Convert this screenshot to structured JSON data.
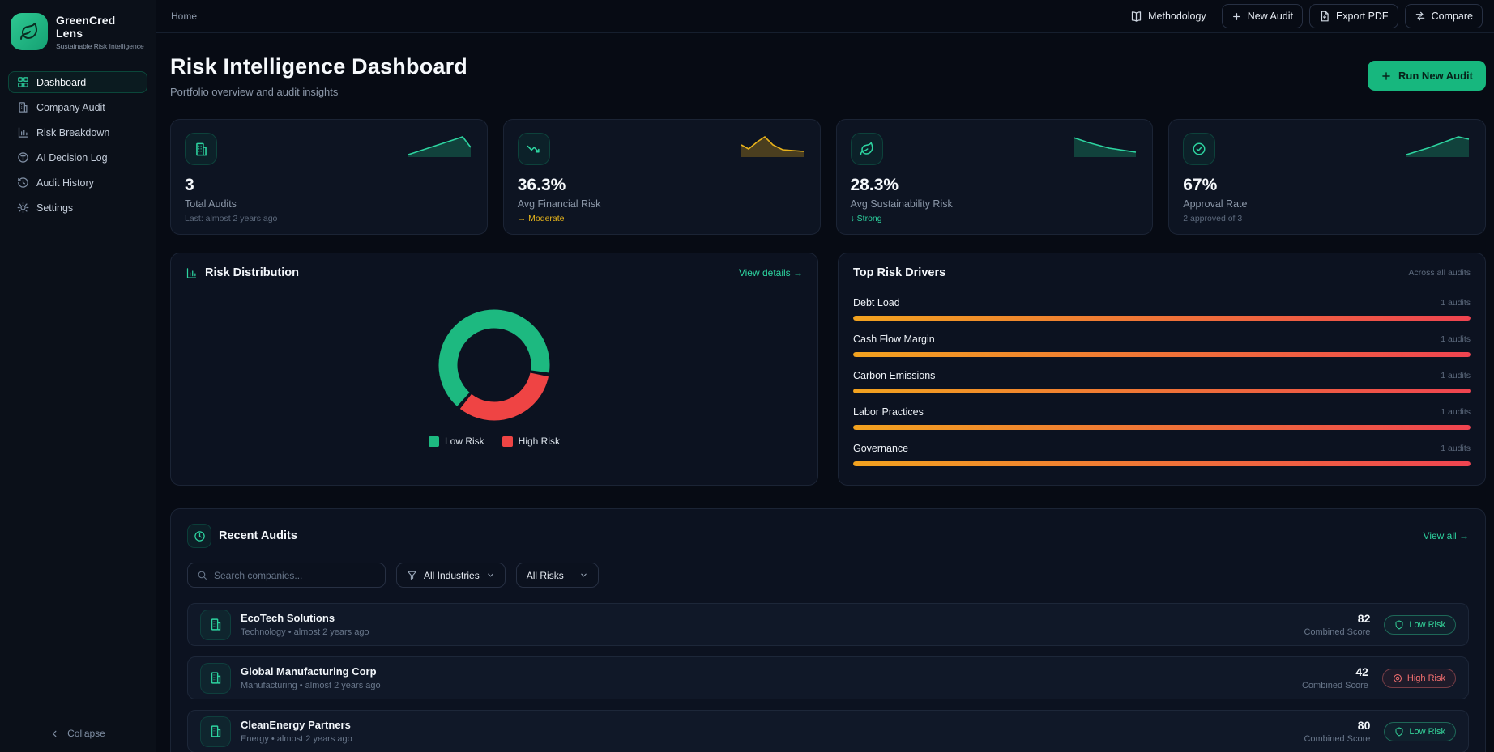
{
  "app": {
    "name": "GreenCred Lens",
    "tagline": "Sustainable Risk Intelligence"
  },
  "breadcrumb": "Home",
  "topbar": {
    "methodology": "Methodology",
    "new_audit": "New Audit",
    "export_pdf": "Export PDF",
    "compare": "Compare"
  },
  "sidebar": {
    "items": [
      {
        "label": "Dashboard",
        "active": true
      },
      {
        "label": "Company Audit",
        "active": false
      },
      {
        "label": "Risk Breakdown",
        "active": false
      },
      {
        "label": "AI Decision Log",
        "active": false
      },
      {
        "label": "Audit History",
        "active": false
      },
      {
        "label": "Settings",
        "active": false
      }
    ],
    "collapse": "Collapse"
  },
  "page": {
    "title": "Risk Intelligence Dashboard",
    "subtitle": "Portfolio overview and audit insights",
    "run_new_audit": "Run New Audit"
  },
  "stats": [
    {
      "value": "3",
      "label": "Total Audits",
      "sub": "Last: almost 2 years ago",
      "icon": "building-icon"
    },
    {
      "value": "36.3%",
      "label": "Avg Financial Risk",
      "sub": "→ Moderate",
      "icon": "trending-down-icon"
    },
    {
      "value": "28.3%",
      "label": "Avg Sustainability Risk",
      "sub": "↓ Strong",
      "icon": "leaf-icon"
    },
    {
      "value": "67%",
      "label": "Approval Rate",
      "sub": "2 approved of 3",
      "icon": "check-circle-icon"
    }
  ],
  "risk_distribution": {
    "title": "Risk Distribution",
    "link": "View details →",
    "legend": [
      {
        "label": "Low Risk",
        "color": "#1db980"
      },
      {
        "label": "High Risk",
        "color": "#ef4444"
      }
    ]
  },
  "top_risk_drivers": {
    "title": "Top Risk Drivers",
    "subtitle": "Across all audits",
    "items": [
      {
        "label": "Debt Load",
        "count": "1 audits",
        "pct": 100
      },
      {
        "label": "Cash Flow Margin",
        "count": "1 audits",
        "pct": 100
      },
      {
        "label": "Carbon Emissions",
        "count": "1 audits",
        "pct": 100
      },
      {
        "label": "Labor Practices",
        "count": "1 audits",
        "pct": 100
      },
      {
        "label": "Governance",
        "count": "1 audits",
        "pct": 100
      }
    ]
  },
  "recent_audits": {
    "title": "Recent Audits",
    "link": "View all →",
    "search_placeholder": "Search companies...",
    "industry_filter": "All Industries",
    "risk_filter": "All Risks",
    "score_label": "Combined Score",
    "rows": [
      {
        "name": "EcoTech Solutions",
        "meta": "Technology • almost 2 years ago",
        "score": "82",
        "badge": "Low Risk",
        "risk": "low"
      },
      {
        "name": "Global Manufacturing Corp",
        "meta": "Manufacturing • almost 2 years ago",
        "score": "42",
        "badge": "High Risk",
        "risk": "high"
      },
      {
        "name": "CleanEnergy Partners",
        "meta": "Energy • almost 2 years ago",
        "score": "80",
        "badge": "Low Risk",
        "risk": "low"
      }
    ]
  },
  "chart_data": [
    {
      "type": "pie",
      "title": "Risk Distribution",
      "labels": [
        "Low Risk",
        "High Risk"
      ],
      "values": [
        2,
        1
      ],
      "colors": [
        "#1db980",
        "#ef4444"
      ],
      "donut": true,
      "rotation_deg": 220,
      "legend_position": "bottom"
    },
    {
      "type": "bar",
      "title": "Top Risk Drivers",
      "orientation": "horizontal",
      "categories": [
        "Debt Load",
        "Cash Flow Margin",
        "Carbon Emissions",
        "Labor Practices",
        "Governance"
      ],
      "values": [
        1,
        1,
        1,
        1,
        1
      ],
      "value_labels": [
        "1 audits",
        "1 audits",
        "1 audits",
        "1 audits",
        "1 audits"
      ],
      "xlim": [
        0,
        1
      ],
      "bar_gradient": [
        "#f2a21f",
        "#ef4450"
      ]
    }
  ]
}
